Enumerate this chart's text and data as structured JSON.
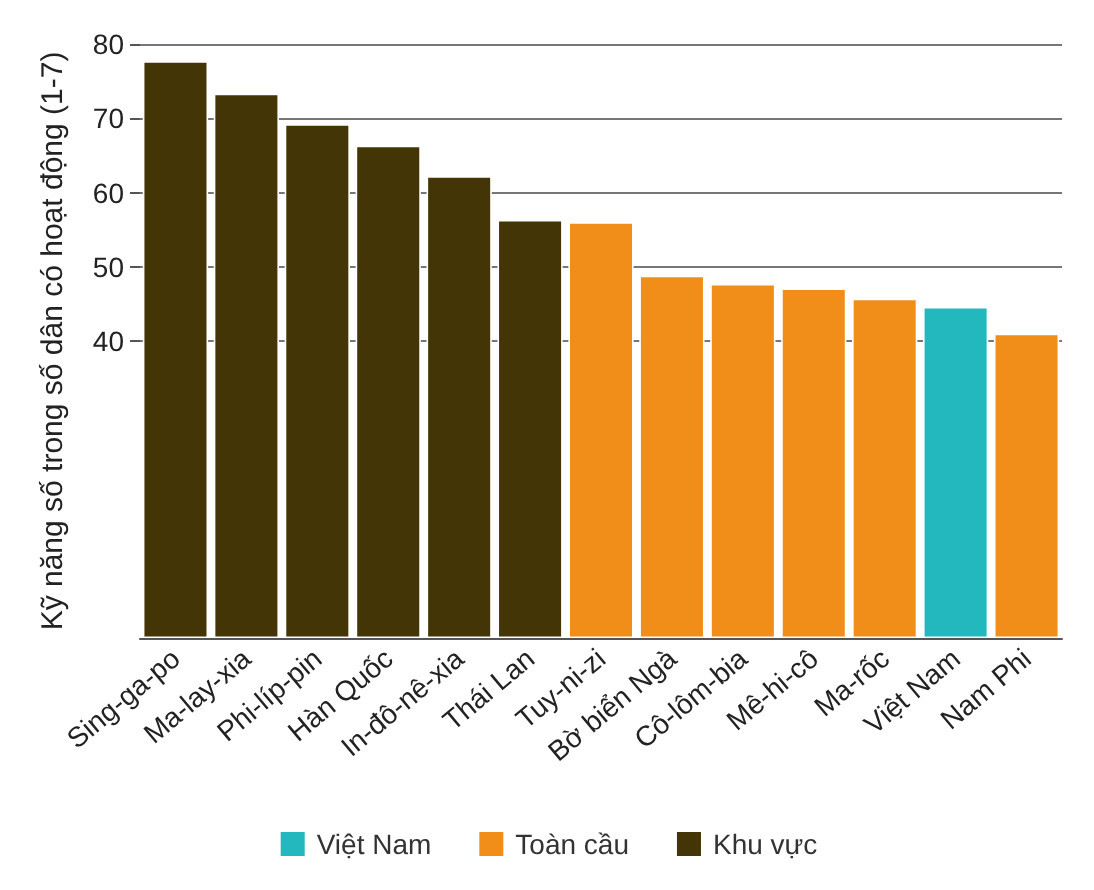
{
  "chart_data": {
    "type": "bar",
    "ylabel": "Kỹ năng số trong số dân có hoạt động (1-7)",
    "categories": [
      "Sing-ga-po",
      "Ma-lay-xia",
      "Phi-líp-pin",
      "Hàn Quốc",
      "In-đô-nê-xia",
      "Thái Lan",
      "Tuy-ni-zi",
      "Bờ biển Ngà",
      "Cô-lôm-bia",
      "Mê-hi-cô",
      "Ma-rốc",
      "Việt Nam",
      "Nam Phi"
    ],
    "series": [
      {
        "name": "Việt Nam",
        "color": "#22b8bd",
        "values": [
          null,
          null,
          null,
          null,
          null,
          null,
          null,
          null,
          null,
          null,
          null,
          44.6,
          null
        ]
      },
      {
        "name": "Toàn cầu",
        "color": "#f18e1a",
        "values": [
          null,
          null,
          null,
          null,
          null,
          null,
          56.0,
          48.8,
          47.7,
          47.1,
          45.7,
          null,
          41.0
        ]
      },
      {
        "name": "Khu vực",
        "color": "#433505",
        "values": [
          77.7,
          73.3,
          69.2,
          66.3,
          62.2,
          56.3,
          null,
          null,
          null,
          null,
          null,
          null,
          null
        ]
      }
    ],
    "stacked": true,
    "ylim": [
      0,
      80
    ],
    "yticks": [
      40,
      50,
      60,
      70,
      80
    ],
    "grid": "y",
    "legend": "bottom"
  }
}
